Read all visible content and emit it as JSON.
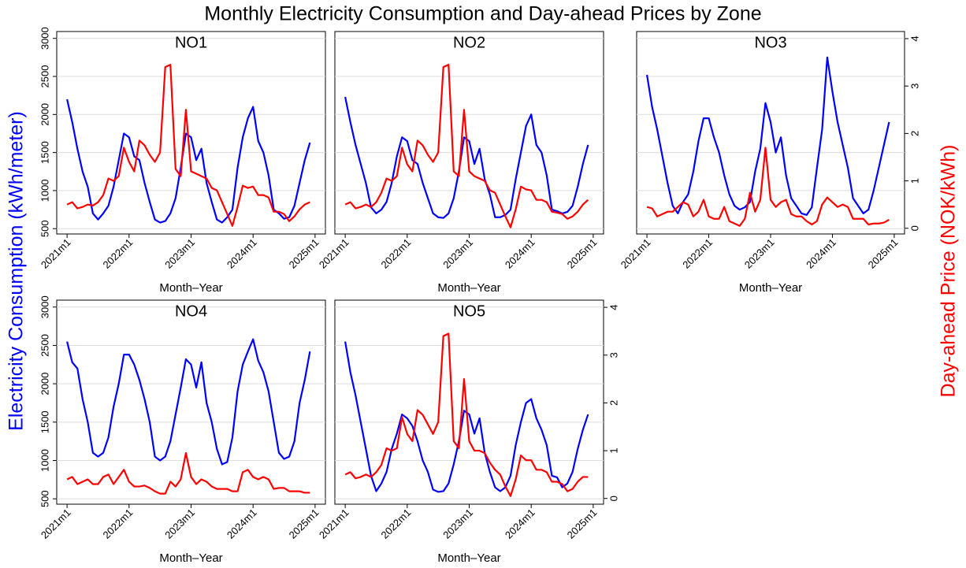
{
  "title": "Monthly Electricity Consumption and Day-ahead Prices by Zone",
  "ylabel": "Electricity Consumption (kWh/meter)",
  "y2label": "Day-ahead Price (NOK/kWh)",
  "chart_data": [
    {
      "type": "line",
      "title": "NO1",
      "xlabel": "Month–Year",
      "grid": true,
      "show_ytick_labels": true,
      "show_y2tick_labels": false,
      "x": [
        732,
        733,
        734,
        735,
        736,
        737,
        738,
        739,
        740,
        741,
        742,
        743,
        744,
        745,
        746,
        747,
        748,
        749,
        750,
        751,
        752,
        753,
        754,
        755,
        756,
        757,
        758,
        759,
        760,
        761,
        762,
        763,
        764,
        765,
        766,
        767,
        768,
        769,
        770,
        771,
        772,
        773,
        774,
        775,
        776,
        777,
        778,
        779
      ],
      "xlim": [
        730,
        782
      ],
      "xticks": [
        {
          "value": 732,
          "label": "2021m1"
        },
        {
          "value": 744,
          "label": "2022m1"
        },
        {
          "value": 756,
          "label": "2023m1"
        },
        {
          "value": 768,
          "label": "2024m1"
        },
        {
          "value": 780,
          "label": "2025m1"
        }
      ],
      "ylim": [
        430,
        3090
      ],
      "yticks": [
        500,
        1000,
        1500,
        2000,
        2500,
        3000
      ],
      "y2lim": [
        -0.12,
        4.15
      ],
      "y2ticks": [
        0,
        1,
        2,
        3,
        4
      ],
      "series": [
        {
          "color": "#0000ff",
          "values": [
            2200,
            1900,
            1550,
            1250,
            1050,
            700,
            620,
            700,
            800,
            1050,
            1400,
            1750,
            1700,
            1450,
            1400,
            1100,
            850,
            620,
            580,
            600,
            700,
            900,
            1300,
            1750,
            1700,
            1400,
            1550,
            1100,
            850,
            620,
            580,
            650,
            750,
            1300,
            1700,
            1950,
            2100,
            1650,
            1500,
            1200,
            750,
            700,
            630,
            650,
            800,
            1100,
            1400,
            1630
          ]
        },
        {
          "axis": "y2",
          "color": "#ff0000",
          "values": [
            0.5,
            0.55,
            0.42,
            0.45,
            0.5,
            0.48,
            0.55,
            0.7,
            1.05,
            1.0,
            1.1,
            1.7,
            1.4,
            1.2,
            1.85,
            1.75,
            1.55,
            1.4,
            1.6,
            3.4,
            3.45,
            1.25,
            1.1,
            2.5,
            1.2,
            1.15,
            1.1,
            1.05,
            0.85,
            0.8,
            0.55,
            0.3,
            0.05,
            0.45,
            0.9,
            0.85,
            0.88,
            0.7,
            0.7,
            0.65,
            0.35,
            0.35,
            0.3,
            0.15,
            0.25,
            0.4,
            0.5,
            0.55
          ]
        }
      ]
    },
    {
      "type": "line",
      "title": "NO2",
      "xlabel": "Month–Year",
      "grid": true,
      "show_ytick_labels": false,
      "show_y2tick_labels": false,
      "x": [
        732,
        733,
        734,
        735,
        736,
        737,
        738,
        739,
        740,
        741,
        742,
        743,
        744,
        745,
        746,
        747,
        748,
        749,
        750,
        751,
        752,
        753,
        754,
        755,
        756,
        757,
        758,
        759,
        760,
        761,
        762,
        763,
        764,
        765,
        766,
        767,
        768,
        769,
        770,
        771,
        772,
        773,
        774,
        775,
        776,
        777,
        778,
        779
      ],
      "xlim": [
        730,
        782
      ],
      "xticks": [
        {
          "value": 732,
          "label": "2021m1"
        },
        {
          "value": 744,
          "label": "2022m1"
        },
        {
          "value": 756,
          "label": "2023m1"
        },
        {
          "value": 768,
          "label": "2024m1"
        },
        {
          "value": 780,
          "label": "2025m1"
        }
      ],
      "ylim": [
        430,
        3090
      ],
      "yticks": [
        500,
        1000,
        1500,
        2000,
        2500,
        3000
      ],
      "y2lim": [
        -0.12,
        4.15
      ],
      "y2ticks": [
        0,
        1,
        2,
        3,
        4
      ],
      "series": [
        {
          "color": "#0000ff",
          "values": [
            2230,
            1900,
            1600,
            1350,
            1100,
            780,
            700,
            750,
            850,
            1100,
            1450,
            1700,
            1650,
            1400,
            1350,
            1100,
            900,
            700,
            650,
            640,
            700,
            900,
            1250,
            1700,
            1650,
            1350,
            1550,
            1150,
            950,
            650,
            650,
            680,
            750,
            1150,
            1500,
            1850,
            2000,
            1600,
            1500,
            1200,
            750,
            730,
            700,
            720,
            800,
            1050,
            1350,
            1600
          ]
        },
        {
          "axis": "y2",
          "color": "#ff0000",
          "values": [
            0.5,
            0.55,
            0.42,
            0.45,
            0.5,
            0.45,
            0.55,
            0.75,
            1.05,
            1.0,
            1.1,
            1.7,
            1.35,
            1.2,
            1.85,
            1.75,
            1.55,
            1.4,
            1.6,
            3.4,
            3.45,
            1.2,
            1.1,
            2.5,
            1.2,
            1.1,
            1.05,
            1.0,
            0.8,
            0.75,
            0.5,
            0.25,
            0.02,
            0.4,
            0.88,
            0.82,
            0.8,
            0.6,
            0.6,
            0.55,
            0.35,
            0.33,
            0.3,
            0.2,
            0.25,
            0.35,
            0.5,
            0.6
          ]
        }
      ]
    },
    {
      "type": "line",
      "title": "NO3",
      "xlabel": "Month–Year",
      "grid": true,
      "show_ytick_labels": false,
      "show_y2tick_labels": true,
      "x": [
        732,
        733,
        734,
        735,
        736,
        737,
        738,
        739,
        740,
        741,
        742,
        743,
        744,
        745,
        746,
        747,
        748,
        749,
        750,
        751,
        752,
        753,
        754,
        755,
        756,
        757,
        758,
        759,
        760,
        761,
        762,
        763,
        764,
        765,
        766,
        767,
        768,
        769,
        770,
        771,
        772,
        773,
        774,
        775,
        776,
        777,
        778,
        779
      ],
      "xlim": [
        730,
        782
      ],
      "xticks": [
        {
          "value": 732,
          "label": "2021m1"
        },
        {
          "value": 744,
          "label": "2022m1"
        },
        {
          "value": 756,
          "label": "2023m1"
        },
        {
          "value": 768,
          "label": "2024m1"
        },
        {
          "value": 780,
          "label": "2025m1"
        }
      ],
      "ylim": [
        430,
        3090
      ],
      "yticks": [
        500,
        1000,
        1500,
        2000,
        2500,
        3000
      ],
      "y2lim": [
        -0.12,
        4.15
      ],
      "y2ticks": [
        0,
        1,
        2,
        3,
        4
      ],
      "series": [
        {
          "color": "#0000ff",
          "values": [
            2520,
            2100,
            1800,
            1450,
            1100,
            800,
            700,
            850,
            950,
            1250,
            1650,
            1950,
            1950,
            1700,
            1500,
            1200,
            950,
            800,
            750,
            780,
            850,
            1250,
            1550,
            2150,
            1900,
            1500,
            1700,
            1200,
            900,
            800,
            700,
            680,
            780,
            1300,
            1800,
            2750,
            2300,
            1900,
            1600,
            1300,
            900,
            800,
            700,
            750,
            1000,
            1300,
            1600,
            1900
          ]
        },
        {
          "axis": "y2",
          "color": "#ff0000",
          "values": [
            0.45,
            0.42,
            0.25,
            0.3,
            0.35,
            0.35,
            0.45,
            0.55,
            0.5,
            0.25,
            0.35,
            0.6,
            0.25,
            0.2,
            0.2,
            0.45,
            0.15,
            0.1,
            0.05,
            0.2,
            0.75,
            0.35,
            0.6,
            1.7,
            0.6,
            0.45,
            0.55,
            0.6,
            0.3,
            0.25,
            0.25,
            0.15,
            0.08,
            0.15,
            0.5,
            0.65,
            0.55,
            0.45,
            0.5,
            0.45,
            0.2,
            0.2,
            0.2,
            0.08,
            0.1,
            0.1,
            0.12,
            0.18
          ]
        }
      ]
    },
    {
      "type": "line",
      "title": "NO4",
      "xlabel": "Month–Year",
      "grid": true,
      "show_ytick_labels": true,
      "show_y2tick_labels": false,
      "x": [
        732,
        733,
        734,
        735,
        736,
        737,
        738,
        739,
        740,
        741,
        742,
        743,
        744,
        745,
        746,
        747,
        748,
        749,
        750,
        751,
        752,
        753,
        754,
        755,
        756,
        757,
        758,
        759,
        760,
        761,
        762,
        763,
        764,
        765,
        766,
        767,
        768,
        769,
        770,
        771,
        772,
        773,
        774,
        775,
        776,
        777,
        778,
        779
      ],
      "xlim": [
        730,
        782
      ],
      "xticks": [
        {
          "value": 732,
          "label": "2021m1"
        },
        {
          "value": 744,
          "label": "2022m1"
        },
        {
          "value": 756,
          "label": "2023m1"
        },
        {
          "value": 768,
          "label": "2024m1"
        },
        {
          "value": 780,
          "label": "2025m1"
        }
      ],
      "ylim": [
        430,
        3090
      ],
      "yticks": [
        500,
        1000,
        1500,
        2000,
        2500,
        3000
      ],
      "y2lim": [
        -0.12,
        4.15
      ],
      "y2ticks": [
        0,
        1,
        2,
        3,
        4
      ],
      "series": [
        {
          "color": "#0000ff",
          "values": [
            2550,
            2280,
            2200,
            1800,
            1500,
            1100,
            1050,
            1100,
            1300,
            1700,
            2000,
            2380,
            2380,
            2250,
            2050,
            1800,
            1500,
            1050,
            1000,
            1050,
            1250,
            1600,
            1950,
            2320,
            2250,
            1950,
            2280,
            1750,
            1500,
            1150,
            950,
            980,
            1300,
            1900,
            2250,
            2420,
            2580,
            2300,
            2150,
            1900,
            1500,
            1100,
            1020,
            1050,
            1250,
            1750,
            2050,
            2420
          ]
        },
        {
          "axis": "y2",
          "color": "#ff0000",
          "values": [
            0.4,
            0.45,
            0.3,
            0.35,
            0.4,
            0.3,
            0.3,
            0.45,
            0.5,
            0.3,
            0.45,
            0.6,
            0.35,
            0.25,
            0.25,
            0.27,
            0.22,
            0.15,
            0.1,
            0.1,
            0.35,
            0.25,
            0.4,
            0.95,
            0.45,
            0.3,
            0.4,
            0.35,
            0.25,
            0.2,
            0.2,
            0.2,
            0.15,
            0.15,
            0.55,
            0.6,
            0.45,
            0.4,
            0.45,
            0.4,
            0.2,
            0.22,
            0.22,
            0.15,
            0.15,
            0.15,
            0.12,
            0.12
          ]
        }
      ]
    },
    {
      "type": "line",
      "title": "NO5",
      "xlabel": "Month–Year",
      "grid": true,
      "show_ytick_labels": false,
      "show_y2tick_labels": true,
      "x": [
        732,
        733,
        734,
        735,
        736,
        737,
        738,
        739,
        740,
        741,
        742,
        743,
        744,
        745,
        746,
        747,
        748,
        749,
        750,
        751,
        752,
        753,
        754,
        755,
        756,
        757,
        758,
        759,
        760,
        761,
        762,
        763,
        764,
        765,
        766,
        767,
        768,
        769,
        770,
        771,
        772,
        773,
        774,
        775,
        776,
        777,
        778,
        779
      ],
      "xlim": [
        730,
        782
      ],
      "xticks": [
        {
          "value": 732,
          "label": "2021m1"
        },
        {
          "value": 744,
          "label": "2022m1"
        },
        {
          "value": 756,
          "label": "2023m1"
        },
        {
          "value": 768,
          "label": "2024m1"
        },
        {
          "value": 780,
          "label": "2025m1"
        }
      ],
      "ylim": [
        430,
        3090
      ],
      "yticks": [
        500,
        1000,
        1500,
        2000,
        2500,
        3000
      ],
      "y2lim": [
        -0.12,
        4.15
      ],
      "y2ticks": [
        0,
        1,
        2,
        3,
        4
      ],
      "series": [
        {
          "color": "#0000ff",
          "values": [
            2550,
            2150,
            1850,
            1500,
            1150,
            800,
            600,
            700,
            850,
            1150,
            1350,
            1600,
            1550,
            1450,
            1250,
            1000,
            850,
            620,
            590,
            600,
            700,
            950,
            1250,
            1650,
            1600,
            1350,
            1550,
            1100,
            850,
            650,
            600,
            650,
            800,
            1200,
            1500,
            1750,
            1800,
            1550,
            1400,
            1200,
            800,
            780,
            650,
            700,
            850,
            1150,
            1400,
            1600
          ]
        },
        {
          "axis": "y2",
          "color": "#ff0000",
          "values": [
            0.5,
            0.55,
            0.42,
            0.45,
            0.5,
            0.45,
            0.55,
            0.7,
            1.05,
            1.0,
            1.05,
            1.7,
            1.35,
            1.2,
            1.85,
            1.75,
            1.55,
            1.35,
            1.6,
            3.4,
            3.45,
            1.2,
            1.05,
            2.5,
            1.2,
            1.0,
            1.0,
            0.95,
            0.75,
            0.6,
            0.5,
            0.25,
            0.05,
            0.4,
            0.9,
            0.8,
            0.8,
            0.6,
            0.6,
            0.55,
            0.35,
            0.35,
            0.3,
            0.15,
            0.2,
            0.35,
            0.45,
            0.45
          ]
        }
      ]
    }
  ]
}
